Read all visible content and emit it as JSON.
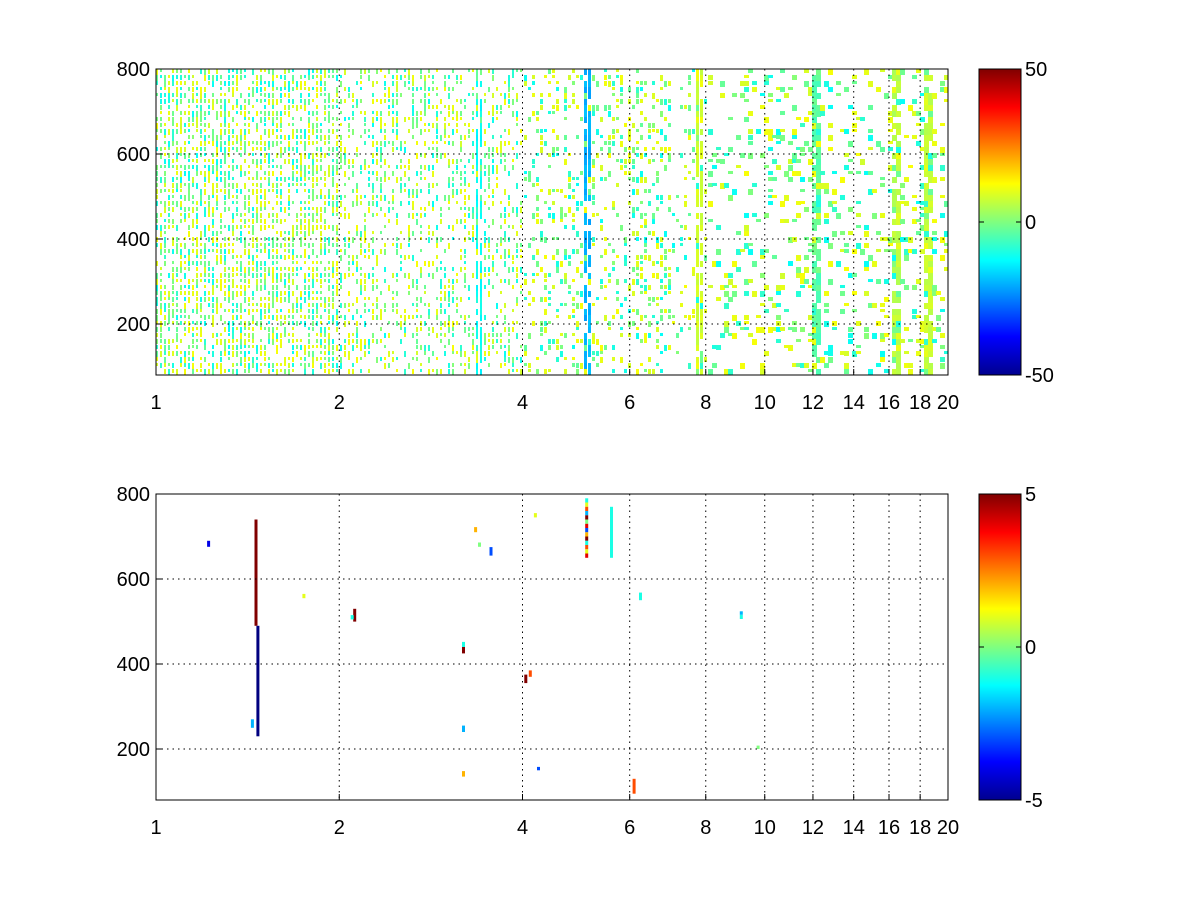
{
  "chart_data": [
    {
      "type": "heatmap",
      "title": "",
      "xlabel": "",
      "ylabel": "",
      "x_scale": "log",
      "xlim": [
        1,
        20
      ],
      "ylim": [
        80,
        800
      ],
      "x_ticks": [
        1,
        2,
        4,
        6,
        8,
        10,
        12,
        14,
        16,
        18,
        20
      ],
      "x_tick_labels": [
        "1",
        "2",
        "4",
        "6",
        "8",
        "10",
        "12",
        "14",
        "16",
        "18",
        "20"
      ],
      "y_ticks": [
        200,
        400,
        600,
        800
      ],
      "y_tick_labels": [
        "200",
        "400",
        "600",
        "800"
      ],
      "grid": true,
      "colormap": "jet",
      "clim": [
        -50,
        50
      ],
      "colorbar_ticks": [
        -50,
        0,
        50
      ],
      "colorbar_tick_labels": [
        "-50",
        "0",
        "50"
      ],
      "colorbar_position": "right",
      "pattern": "dense sparse cells mostly near 0 (green/cyan/yellow); densest for x < 4, strong vertical streaks near x = 5.1, 7.8, 12, 16.2, 18.5",
      "highlight_columns": [
        {
          "x": 3.4,
          "value": -12
        },
        {
          "x": 5.1,
          "value": -20
        },
        {
          "x": 7.8,
          "value": 8
        },
        {
          "x": 12.0,
          "value": -4
        },
        {
          "x": 16.2,
          "value": 6
        },
        {
          "x": 18.5,
          "value": 7
        }
      ]
    },
    {
      "type": "heatmap",
      "title": "",
      "xlabel": "",
      "ylabel": "",
      "x_scale": "log",
      "xlim": [
        1,
        20
      ],
      "ylim": [
        80,
        800
      ],
      "x_ticks": [
        1,
        2,
        4,
        6,
        8,
        10,
        12,
        14,
        16,
        18,
        20
      ],
      "x_tick_labels": [
        "1",
        "2",
        "4",
        "6",
        "8",
        "10",
        "12",
        "14",
        "16",
        "18",
        "20"
      ],
      "y_ticks": [
        200,
        400,
        600,
        800
      ],
      "y_tick_labels": [
        "200",
        "400",
        "600",
        "800"
      ],
      "grid": true,
      "colormap": "jet",
      "clim": [
        -5,
        5
      ],
      "colorbar_ticks": [
        -5,
        0,
        5
      ],
      "colorbar_tick_labels": [
        "-5",
        "0",
        "5"
      ],
      "colorbar_position": "right",
      "cells": [
        {
          "x": 1.22,
          "y0": 676,
          "y1": 690,
          "value": -4
        },
        {
          "x": 1.46,
          "y0": 490,
          "y1": 740,
          "value": 5
        },
        {
          "x": 1.47,
          "y0": 230,
          "y1": 490,
          "value": -5
        },
        {
          "x": 1.44,
          "y0": 250,
          "y1": 270,
          "value": -2
        },
        {
          "x": 1.75,
          "y0": 555,
          "y1": 565,
          "value": 1
        },
        {
          "x": 2.12,
          "y0": 500,
          "y1": 530,
          "value": 5
        },
        {
          "x": 2.1,
          "y0": 505,
          "y1": 515,
          "value": -1
        },
        {
          "x": 3.2,
          "y0": 425,
          "y1": 445,
          "value": 5
        },
        {
          "x": 3.2,
          "y0": 440,
          "y1": 452,
          "value": -1
        },
        {
          "x": 3.2,
          "y0": 240,
          "y1": 255,
          "value": -2
        },
        {
          "x": 3.2,
          "y0": 135,
          "y1": 148,
          "value": 2
        },
        {
          "x": 3.35,
          "y0": 710,
          "y1": 722,
          "value": 2
        },
        {
          "x": 3.4,
          "y0": 676,
          "y1": 686,
          "value": 0
        },
        {
          "x": 3.55,
          "y0": 655,
          "y1": 675,
          "value": -3
        },
        {
          "x": 4.05,
          "y0": 355,
          "y1": 375,
          "value": 5
        },
        {
          "x": 4.12,
          "y0": 370,
          "y1": 385,
          "value": 3
        },
        {
          "x": 4.2,
          "y0": 745,
          "y1": 755,
          "value": 1
        },
        {
          "x": 4.25,
          "y0": 150,
          "y1": 158,
          "value": -3
        },
        {
          "x": 5.1,
          "y0": 780,
          "y1": 790,
          "value": -1
        },
        {
          "x": 5.1,
          "y0": 770,
          "y1": 780,
          "value": 1
        },
        {
          "x": 5.1,
          "y0": 760,
          "y1": 770,
          "value": 3
        },
        {
          "x": 5.1,
          "y0": 750,
          "y1": 760,
          "value": -2
        },
        {
          "x": 5.1,
          "y0": 740,
          "y1": 750,
          "value": 5
        },
        {
          "x": 5.1,
          "y0": 730,
          "y1": 740,
          "value": 0
        },
        {
          "x": 5.1,
          "y0": 720,
          "y1": 730,
          "value": 4
        },
        {
          "x": 5.1,
          "y0": 710,
          "y1": 720,
          "value": -3
        },
        {
          "x": 5.1,
          "y0": 700,
          "y1": 710,
          "value": 2
        },
        {
          "x": 5.1,
          "y0": 690,
          "y1": 700,
          "value": 5
        },
        {
          "x": 5.1,
          "y0": 680,
          "y1": 690,
          "value": -1
        },
        {
          "x": 5.1,
          "y0": 670,
          "y1": 680,
          "value": 3
        },
        {
          "x": 5.1,
          "y0": 660,
          "y1": 670,
          "value": 1
        },
        {
          "x": 5.1,
          "y0": 650,
          "y1": 660,
          "value": 4
        },
        {
          "x": 5.6,
          "y0": 650,
          "y1": 770,
          "value": -1
        },
        {
          "x": 6.1,
          "y0": 95,
          "y1": 130,
          "value": 3
        },
        {
          "x": 6.25,
          "y0": 550,
          "y1": 568,
          "value": -1
        },
        {
          "x": 9.15,
          "y0": 506,
          "y1": 516,
          "value": -1
        },
        {
          "x": 9.15,
          "y0": 516,
          "y1": 524,
          "value": -2
        },
        {
          "x": 9.75,
          "y0": 200,
          "y1": 208,
          "value": 0
        }
      ]
    }
  ]
}
